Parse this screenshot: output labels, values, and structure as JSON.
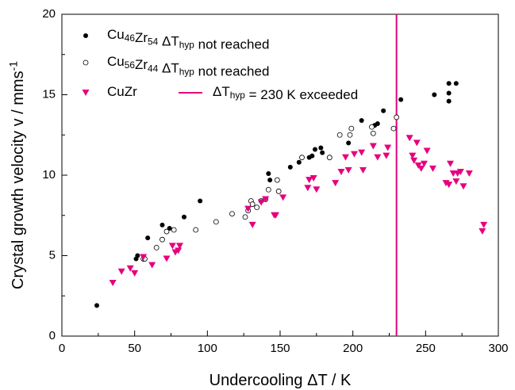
{
  "chart_data": {
    "type": "scatter",
    "xlabel": "Undercooling ΔT / K",
    "ylabel": "Crystal growth velocity v / mms-1",
    "xlim": [
      0,
      300
    ],
    "ylim": [
      0,
      20
    ],
    "xticks": [
      0,
      50,
      100,
      150,
      200,
      250,
      300
    ],
    "yticks": [
      0,
      5,
      10,
      15,
      20
    ],
    "legend": "upper left",
    "series": [
      {
        "name": "Cu46Zr54  ΔThyp not reached",
        "color": "#000000",
        "marker": "filled-circle",
        "x": [
          24,
          51,
          52,
          59,
          69,
          74,
          84,
          95,
          142,
          143,
          157,
          163,
          170,
          172,
          174,
          178,
          179,
          197,
          206,
          215,
          217,
          221,
          233,
          256,
          266,
          266,
          266,
          271
        ],
        "values": [
          1.9,
          4.8,
          5.0,
          6.1,
          6.9,
          6.7,
          7.4,
          8.4,
          10.1,
          9.7,
          10.5,
          10.8,
          11.1,
          11.2,
          11.6,
          11.7,
          11.4,
          12.0,
          13.4,
          13.1,
          13.2,
          14.0,
          14.7,
          15.0,
          15.7,
          15.1,
          14.6,
          15.7
        ]
      },
      {
        "name": "Cu56Zr44  ΔThyp not reached",
        "color": "#000000",
        "marker": "open-circle",
        "x": [
          56,
          57,
          65,
          69,
          72,
          77,
          92,
          106,
          117,
          126,
          128,
          130,
          131,
          134,
          137,
          140,
          142,
          148,
          149,
          165,
          184,
          191,
          198,
          199,
          213,
          214,
          228,
          230
        ],
        "values": [
          4.8,
          4.8,
          5.5,
          6.0,
          6.5,
          6.6,
          6.6,
          7.1,
          7.6,
          7.4,
          7.8,
          8.4,
          8.2,
          8.0,
          8.4,
          8.5,
          9.1,
          9.7,
          9.0,
          11.1,
          11.1,
          12.5,
          12.5,
          12.9,
          13.0,
          12.6,
          12.9,
          13.6
        ]
      },
      {
        "name": "CuZr",
        "color": "#e6007e",
        "marker": "triangle-down",
        "x": [
          35,
          41,
          47,
          50,
          56,
          62,
          72,
          76,
          78,
          80,
          81,
          128,
          131,
          137,
          140,
          146,
          147,
          152,
          169,
          170,
          173,
          175,
          188,
          192,
          195,
          197,
          201,
          206,
          207,
          214,
          217,
          223,
          224,
          239,
          241,
          242,
          244,
          245,
          247,
          249,
          251,
          255,
          264,
          266,
          267,
          269,
          271,
          272,
          274,
          276,
          280,
          289,
          290
        ],
        "values": [
          3.3,
          4.0,
          4.2,
          3.9,
          4.9,
          4.4,
          4.8,
          5.6,
          5.2,
          5.3,
          5.6,
          7.9,
          6.9,
          8.3,
          8.5,
          7.5,
          7.5,
          8.6,
          9.2,
          9.7,
          9.8,
          9.1,
          9.5,
          10.2,
          11.1,
          10.3,
          11.3,
          11.4,
          10.3,
          11.8,
          11.1,
          11.2,
          11.7,
          12.3,
          11.2,
          10.9,
          12.0,
          10.6,
          10.4,
          10.7,
          11.5,
          10.4,
          9.5,
          9.4,
          10.7,
          10.1,
          9.6,
          10.1,
          10.2,
          9.3,
          10.1,
          6.5,
          6.9
        ]
      }
    ],
    "vline": {
      "name": "ΔThyp = 230 K exceeded",
      "x": 230,
      "color": "#e6007e"
    }
  }
}
